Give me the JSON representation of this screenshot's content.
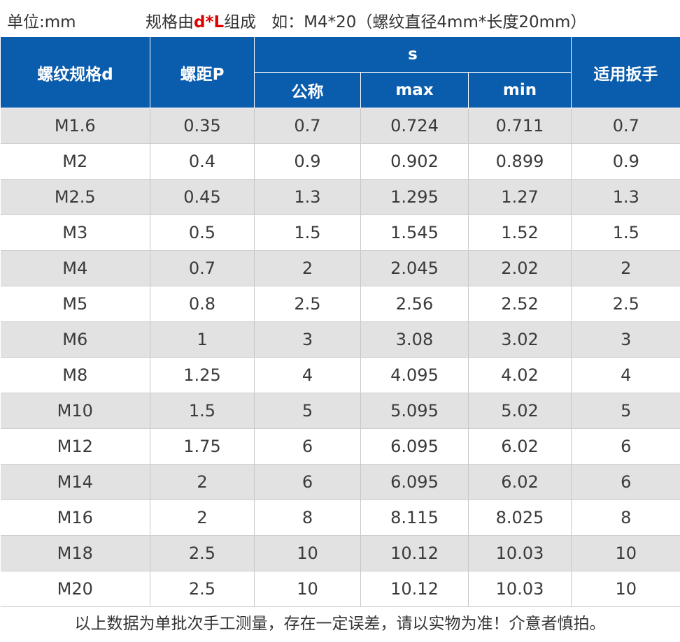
{
  "header_line": {
    "unit": "单位:mm",
    "spec_prefix": "规格由",
    "spec_highlight": "d*L",
    "spec_suffix": "组成",
    "example": "如：M4*20（螺纹直径4mm*长度20mm）",
    "highlight_color": "#e00000"
  },
  "table": {
    "header_color": "#0a5cad",
    "stripe_color": "#e2e2e2",
    "headers": {
      "thread_spec": "螺纹规格d",
      "pitch": "螺距P",
      "s_group": "s",
      "s_nominal": "公称",
      "s_max": "max",
      "s_min": "min",
      "wrench": "适用扳手"
    },
    "rows": [
      [
        "M1.6",
        "0.35",
        "0.7",
        "0.724",
        "0.711",
        "0.7"
      ],
      [
        "M2",
        "0.4",
        "0.9",
        "0.902",
        "0.899",
        "0.9"
      ],
      [
        "M2.5",
        "0.45",
        "1.3",
        "1.295",
        "1.27",
        "1.3"
      ],
      [
        "M3",
        "0.5",
        "1.5",
        "1.545",
        "1.52",
        "1.5"
      ],
      [
        "M4",
        "0.7",
        "2",
        "2.045",
        "2.02",
        "2"
      ],
      [
        "M5",
        "0.8",
        "2.5",
        "2.56",
        "2.52",
        "2.5"
      ],
      [
        "M6",
        "1",
        "3",
        "3.08",
        "3.02",
        "3"
      ],
      [
        "M8",
        "1.25",
        "4",
        "4.095",
        "4.02",
        "4"
      ],
      [
        "M10",
        "1.5",
        "5",
        "5.095",
        "5.02",
        "5"
      ],
      [
        "M12",
        "1.75",
        "6",
        "6.095",
        "6.02",
        "6"
      ],
      [
        "M14",
        "2",
        "6",
        "6.095",
        "6.02",
        "6"
      ],
      [
        "M16",
        "2",
        "8",
        "8.115",
        "8.025",
        "8"
      ],
      [
        "M18",
        "2.5",
        "10",
        "10.12",
        "10.03",
        "10"
      ],
      [
        "M20",
        "2.5",
        "10",
        "10.12",
        "10.03",
        "10"
      ]
    ]
  },
  "footer": "以上数据为单批次手工测量，存在一定误差，请以实物为准！介意者慎拍。"
}
